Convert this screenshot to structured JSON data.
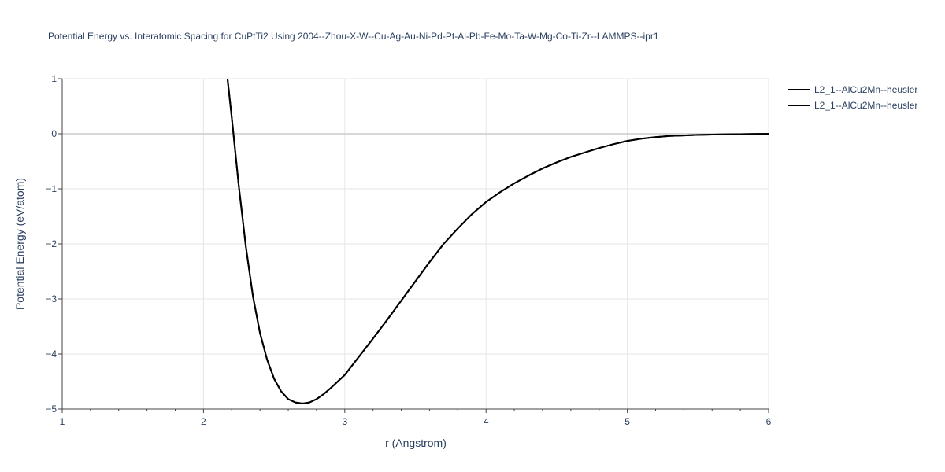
{
  "chart_data": {
    "type": "line",
    "title": "Potential Energy vs. Interatomic Spacing for CuPtTi2 Using 2004--Zhou-X-W--Cu-Ag-Au-Ni-Pd-Pt-Al-Pb-Fe-Mo-Ta-W-Mg-Co-Ti-Zr--LAMMPS--ipr1",
    "xlabel": "r (Angstrom)",
    "ylabel": "Potential Energy (eV/atom)",
    "xlim": [
      1,
      6
    ],
    "ylim": [
      -5,
      1
    ],
    "x_ticks": [
      1,
      2,
      3,
      4,
      5,
      6
    ],
    "x_tick_labels": [
      "1",
      "2",
      "3",
      "4",
      "5",
      "6"
    ],
    "y_ticks": [
      1,
      0,
      -1,
      -2,
      -3,
      -4,
      -5
    ],
    "y_tick_labels": [
      "1",
      "0",
      "−1",
      "−2",
      "−3",
      "−4",
      "−5"
    ],
    "grid": true,
    "legend_position": "top-right",
    "series": [
      {
        "name": "L2_1--AlCu2Mn--heusler",
        "color": "#000000",
        "x": [
          2.17,
          2.2,
          2.25,
          2.3,
          2.35,
          2.4,
          2.45,
          2.5,
          2.55,
          2.6,
          2.65,
          2.7,
          2.75,
          2.8,
          2.85,
          2.9,
          3.0,
          3.1,
          3.2,
          3.3,
          3.4,
          3.5,
          3.6,
          3.7,
          3.8,
          3.9,
          4.0,
          4.1,
          4.2,
          4.3,
          4.4,
          4.5,
          4.6,
          4.7,
          4.8,
          4.9,
          5.0,
          5.1,
          5.2,
          5.3,
          5.4,
          5.5,
          5.6,
          5.7,
          5.8,
          5.9,
          6.0
        ],
        "y": [
          1.0,
          0.3,
          -0.95,
          -2.05,
          -2.95,
          -3.62,
          -4.1,
          -4.45,
          -4.68,
          -4.82,
          -4.88,
          -4.9,
          -4.88,
          -4.82,
          -4.73,
          -4.62,
          -4.38,
          -4.05,
          -3.72,
          -3.38,
          -3.03,
          -2.68,
          -2.33,
          -2.0,
          -1.72,
          -1.46,
          -1.24,
          -1.06,
          -0.9,
          -0.76,
          -0.63,
          -0.52,
          -0.42,
          -0.34,
          -0.26,
          -0.19,
          -0.13,
          -0.09,
          -0.06,
          -0.04,
          -0.03,
          -0.02,
          -0.015,
          -0.01,
          -0.007,
          -0.004,
          -0.002
        ]
      },
      {
        "name": "L2_1--AlCu2Mn--heusler",
        "color": "#000000",
        "x": [
          2.17,
          2.2,
          2.25,
          2.3,
          2.35,
          2.4,
          2.45,
          2.5,
          2.55,
          2.6,
          2.65,
          2.7,
          2.75,
          2.8,
          2.85,
          2.9,
          3.0,
          3.1,
          3.2,
          3.3,
          3.4,
          3.5,
          3.6,
          3.7,
          3.8,
          3.9,
          4.0,
          4.1,
          4.2,
          4.3,
          4.4,
          4.5,
          4.6,
          4.7,
          4.8,
          4.9,
          5.0,
          5.1,
          5.2,
          5.3,
          5.4,
          5.5,
          5.6,
          5.7,
          5.8,
          5.9,
          6.0
        ],
        "y": [
          1.0,
          0.3,
          -0.95,
          -2.05,
          -2.95,
          -3.62,
          -4.1,
          -4.45,
          -4.68,
          -4.82,
          -4.88,
          -4.9,
          -4.88,
          -4.82,
          -4.73,
          -4.62,
          -4.38,
          -4.05,
          -3.72,
          -3.38,
          -3.03,
          -2.68,
          -2.33,
          -2.0,
          -1.72,
          -1.46,
          -1.24,
          -1.06,
          -0.9,
          -0.76,
          -0.63,
          -0.52,
          -0.42,
          -0.34,
          -0.26,
          -0.19,
          -0.13,
          -0.09,
          -0.06,
          -0.04,
          -0.03,
          -0.02,
          -0.015,
          -0.01,
          -0.007,
          -0.004,
          -0.002
        ]
      }
    ]
  }
}
